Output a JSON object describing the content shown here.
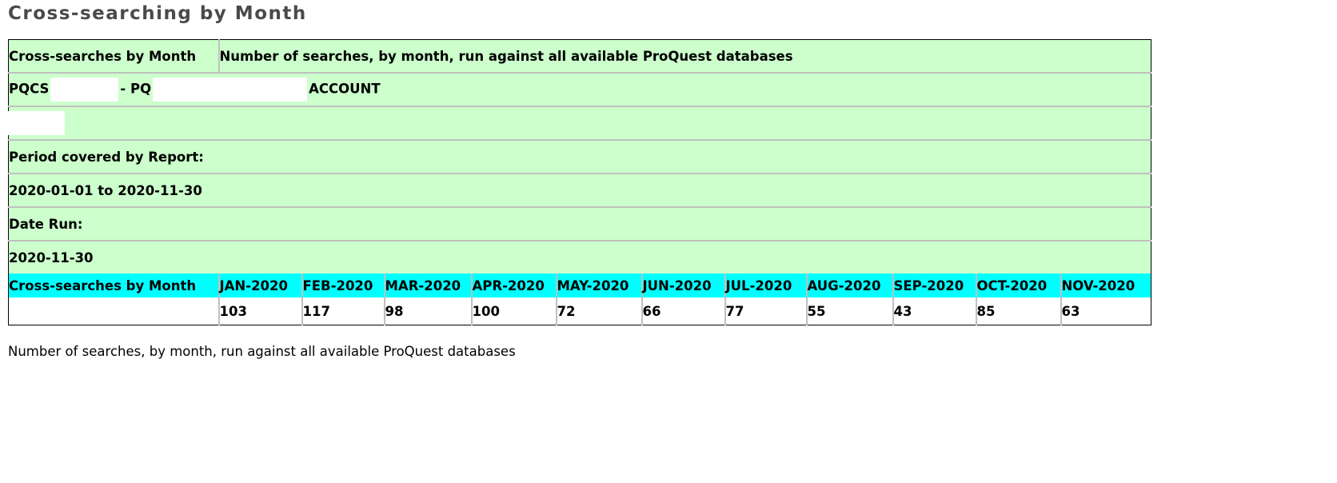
{
  "page": {
    "title": "Cross-searching by Month"
  },
  "report_header": {
    "report_name": "Cross-searches by Month",
    "report_description": "Number of searches, by month, run against all available ProQuest databases",
    "account_prefix": "PQCS",
    "account_middle": "- PQ",
    "account_suffix": "ACCOUNT",
    "period_label": "Period covered by Report:",
    "period_value": "2020-01-01 to 2020-11-30",
    "date_run_label": "Date Run:",
    "date_run_value": "2020-11-30"
  },
  "table": {
    "row_header": "Cross-searches by Month",
    "months": [
      "JAN-2020",
      "FEB-2020",
      "MAR-2020",
      "APR-2020",
      "MAY-2020",
      "JUN-2020",
      "JUL-2020",
      "AUG-2020",
      "SEP-2020",
      "OCT-2020",
      "NOV-2020"
    ],
    "row_label": "",
    "values": [
      "103",
      "117",
      "98",
      "100",
      "72",
      "66",
      "77",
      "55",
      "43",
      "85",
      "63"
    ]
  },
  "footnote": "Number of searches, by month, run against all available ProQuest databases",
  "colors": {
    "meta_background": "#ccffcc",
    "header_background": "#00ffff",
    "title_color": "#4a4a4a"
  }
}
